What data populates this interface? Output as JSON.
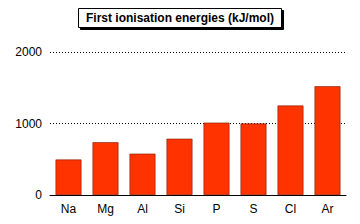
{
  "chart_data": {
    "type": "bar",
    "title": "First ionisation energies (kJ/mol)",
    "categories": [
      "Na",
      "Mg",
      "Al",
      "Si",
      "P",
      "S",
      "Cl",
      "Ar"
    ],
    "values": [
      496,
      738,
      578,
      787,
      1012,
      1000,
      1251,
      1521
    ],
    "color": "#ff3300",
    "ylim": [
      0,
      2000
    ],
    "yticks": [
      0,
      1000,
      2000
    ],
    "grid": true
  }
}
